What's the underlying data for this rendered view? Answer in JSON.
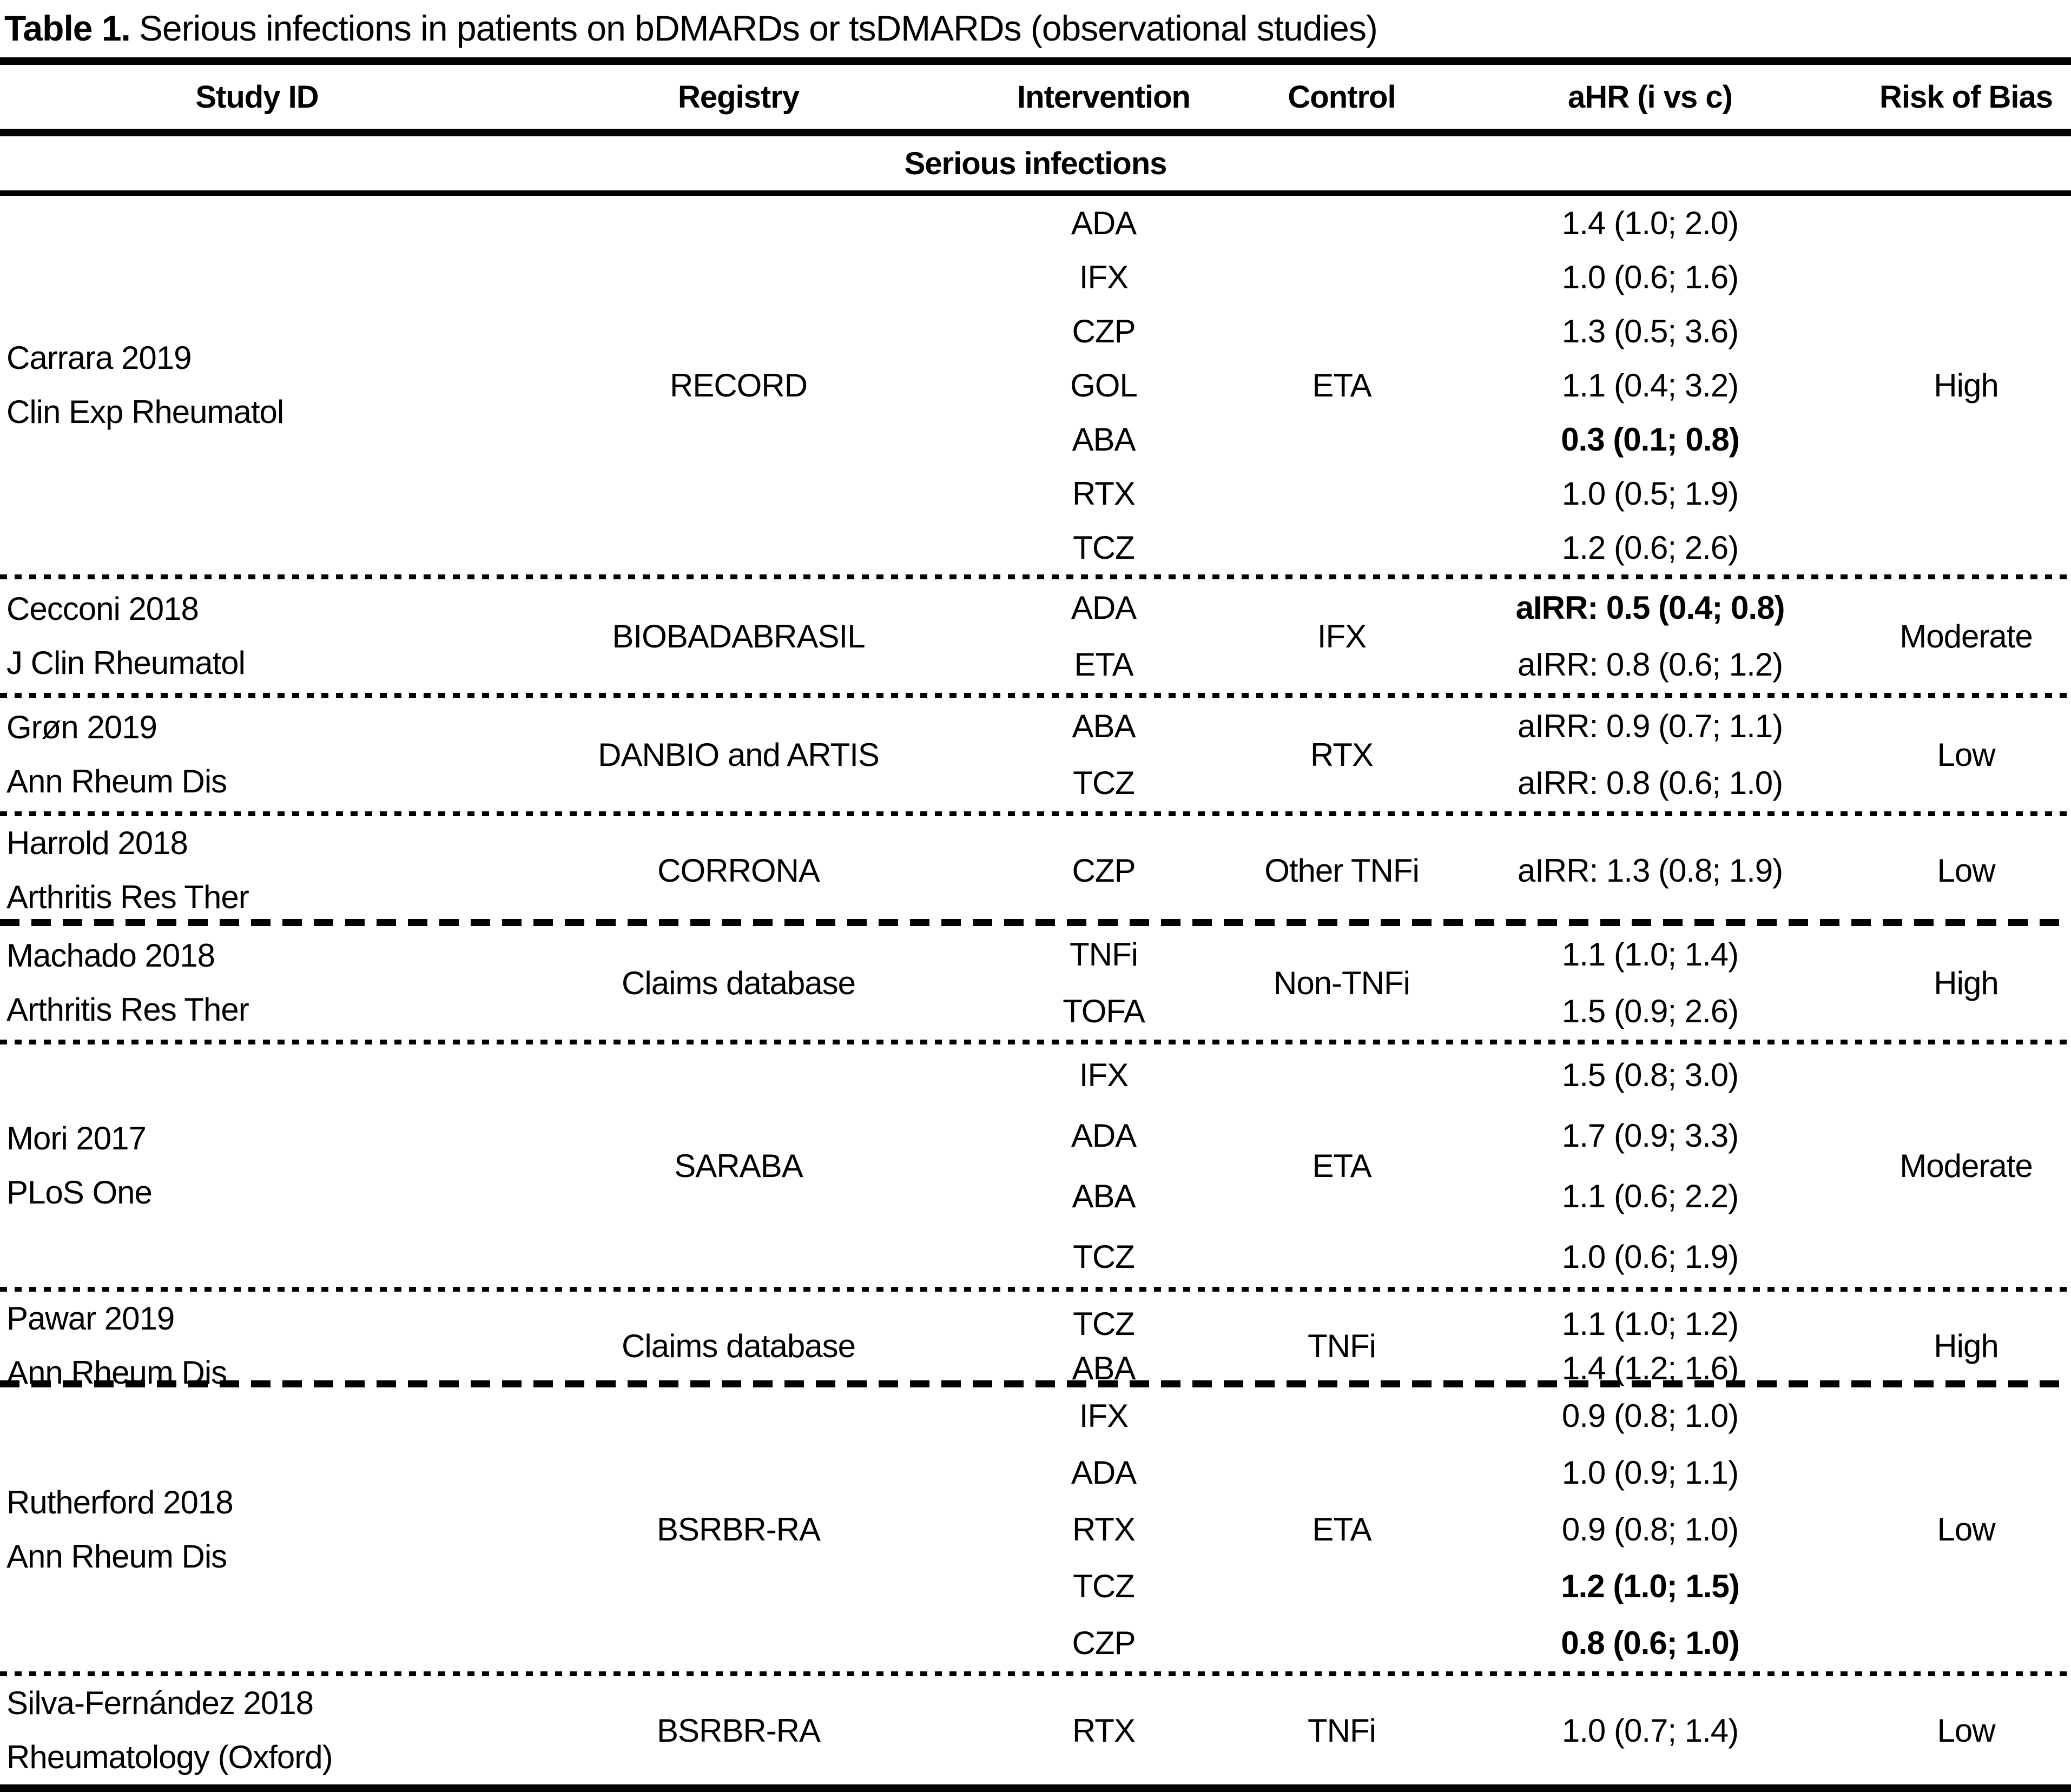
{
  "title": {
    "label": "Table 1.",
    "text": "Serious infections in patients on bDMARDs or tsDMARDs (observational studies)"
  },
  "columns": [
    "Study ID",
    "Registry",
    "Intervention",
    "Control",
    "aHR (i vs c)",
    "Risk of Bias"
  ],
  "section_header": "Serious infections",
  "studies": [
    {
      "study_lines": [
        "Carrara 2019",
        "Clin Exp Rheumatol"
      ],
      "registry": "RECORD",
      "control": "ETA",
      "risk_of_bias": "High",
      "rows": [
        {
          "intervention": "ADA",
          "ahr": "1.4 (1.0; 2.0)",
          "bold": false
        },
        {
          "intervention": "IFX",
          "ahr": "1.0 (0.6; 1.6)",
          "bold": false
        },
        {
          "intervention": "CZP",
          "ahr": "1.3 (0.5; 3.6)",
          "bold": false
        },
        {
          "intervention": "GOL",
          "ahr": "1.1 (0.4; 3.2)",
          "bold": false
        },
        {
          "intervention": "ABA",
          "ahr": "0.3 (0.1; 0.8)",
          "bold": true
        },
        {
          "intervention": "RTX",
          "ahr": "1.0 (0.5; 1.9)",
          "bold": false
        },
        {
          "intervention": "TCZ",
          "ahr": "1.2 (0.6; 2.6)",
          "bold": false
        }
      ]
    },
    {
      "study_lines": [
        "Cecconi 2018",
        "J Clin Rheumatol"
      ],
      "registry": "BIOBADABRASIL",
      "control": "IFX",
      "risk_of_bias": "Moderate",
      "rows": [
        {
          "intervention": "ADA",
          "ahr": "aIRR: 0.5 (0.4; 0.8)",
          "bold": true
        },
        {
          "intervention": "ETA",
          "ahr": "aIRR: 0.8 (0.6; 1.2)",
          "bold": false
        }
      ]
    },
    {
      "study_lines": [
        "Grøn 2019",
        "Ann Rheum Dis"
      ],
      "registry": "DANBIO and ARTIS",
      "control": "RTX",
      "risk_of_bias": "Low",
      "rows": [
        {
          "intervention": "ABA",
          "ahr": "aIRR: 0.9 (0.7; 1.1)",
          "bold": false
        },
        {
          "intervention": "TCZ",
          "ahr": "aIRR: 0.8 (0.6; 1.0)",
          "bold": false
        }
      ]
    },
    {
      "study_lines": [
        "Harrold 2018",
        "Arthritis Res Ther"
      ],
      "registry": "CORRONA",
      "control": "Other TNFi",
      "risk_of_bias": "Low",
      "rows": [
        {
          "intervention": "CZP",
          "ahr": "aIRR: 1.3 (0.8; 1.9)",
          "bold": false
        }
      ]
    },
    {
      "study_lines": [
        "Machado 2018",
        "Arthritis Res Ther"
      ],
      "registry": "Claims database",
      "control": "Non-TNFi",
      "risk_of_bias": "High",
      "rows": [
        {
          "intervention": "TNFi",
          "ahr": "1.1 (1.0; 1.4)",
          "bold": false
        },
        {
          "intervention": "TOFA",
          "ahr": "1.5 (0.9; 2.6)",
          "bold": false
        }
      ]
    },
    {
      "study_lines": [
        "Mori 2017",
        "PLoS One"
      ],
      "registry": "SARABA",
      "control": "ETA",
      "risk_of_bias": "Moderate",
      "rows": [
        {
          "intervention": "IFX",
          "ahr": "1.5 (0.8; 3.0)",
          "bold": false
        },
        {
          "intervention": "ADA",
          "ahr": "1.7 (0.9; 3.3)",
          "bold": false
        },
        {
          "intervention": "ABA",
          "ahr": "1.1 (0.6; 2.2)",
          "bold": false
        },
        {
          "intervention": "TCZ",
          "ahr": "1.0 (0.6; 1.9)",
          "bold": false
        }
      ]
    },
    {
      "study_lines": [
        "Pawar 2019",
        "Ann Rheum Dis"
      ],
      "registry": "Claims database",
      "control": "TNFi",
      "risk_of_bias": "High",
      "rows": [
        {
          "intervention": "TCZ",
          "ahr": "1.1 (1.0; 1.2)",
          "bold": false
        },
        {
          "intervention": "ABA",
          "ahr": "1.4 (1.2; 1.6)",
          "bold": false
        }
      ]
    },
    {
      "study_lines": [
        "Rutherford 2018",
        "Ann Rheum Dis"
      ],
      "registry": "BSRBR-RA",
      "control": "ETA",
      "risk_of_bias": "Low",
      "rows": [
        {
          "intervention": "IFX",
          "ahr": "0.9 (0.8; 1.0)",
          "bold": false
        },
        {
          "intervention": "ADA",
          "ahr": "1.0 (0.9; 1.1)",
          "bold": false
        },
        {
          "intervention": "RTX",
          "ahr": "0.9 (0.8; 1.0)",
          "bold": false
        },
        {
          "intervention": "TCZ",
          "ahr": "1.2 (1.0; 1.5)",
          "bold": true
        },
        {
          "intervention": "CZP",
          "ahr": "0.8 (0.6; 1.0)",
          "bold": true
        }
      ]
    },
    {
      "study_lines": [
        "Silva-Fernández 2018",
        "Rheumatology (Oxford)"
      ],
      "registry": "BSRBR-RA",
      "control": "TNFi",
      "risk_of_bias": "Low",
      "rows": [
        {
          "intervention": "RTX",
          "ahr": "1.0 (0.7; 1.4)",
          "bold": false
        }
      ]
    }
  ]
}
